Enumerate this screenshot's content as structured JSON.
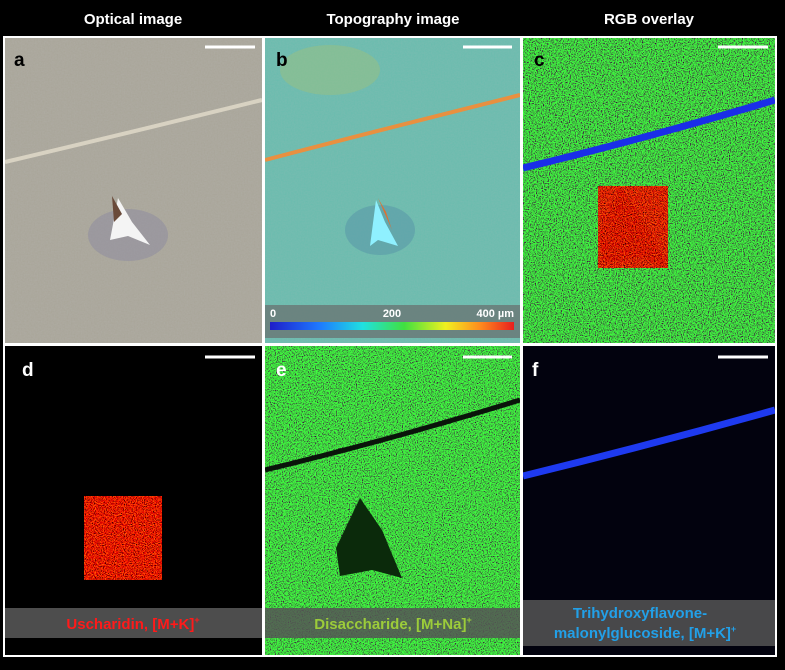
{
  "header": {
    "columns": [
      "Optical image",
      "Topography image",
      "RGB overlay"
    ]
  },
  "panels": [
    {
      "letter": "a"
    },
    {
      "letter": "b",
      "colorbar": {
        "ticks": [
          "0",
          "200",
          "400 µm"
        ]
      }
    },
    {
      "letter": "c"
    },
    {
      "letter": "d",
      "label": {
        "lines": [
          "Uscharidin, [M+K]"
        ],
        "superscript": "+",
        "color": "#ff1a1a"
      }
    },
    {
      "letter": "e",
      "label": {
        "lines": [
          "Disaccharide, [M+Na]"
        ],
        "superscript": "+",
        "color": "#9ccc3a"
      }
    },
    {
      "letter": "f",
      "label": {
        "lines": [
          "Trihydroxyflavone-",
          "malonylglucoside, [M+K]"
        ],
        "superscript": "+",
        "color": "#22a0e8"
      }
    }
  ]
}
